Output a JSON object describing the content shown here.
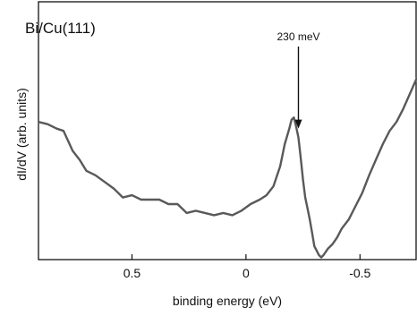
{
  "chart_data": {
    "type": "line",
    "panel_label": "Bi/Cu(111)",
    "xlabel": "binding energy (eV)",
    "ylabel": "dI/dV (arb. units)",
    "xlim": [
      0.91,
      -0.75
    ],
    "ylim": [
      0,
      100
    ],
    "y_ticks_labeled": false,
    "x_ticks": [
      0.5,
      0,
      -0.5
    ],
    "x_tick_labels": [
      "0.5",
      "0",
      "-0.5"
    ],
    "grid": false,
    "series": [
      {
        "color": "#595959",
        "x": [
          0.91,
          0.87,
          0.83,
          0.8,
          0.76,
          0.73,
          0.7,
          0.66,
          0.62,
          0.58,
          0.54,
          0.5,
          0.46,
          0.42,
          0.38,
          0.34,
          0.3,
          0.26,
          0.22,
          0.18,
          0.14,
          0.1,
          0.06,
          0.02,
          -0.02,
          -0.06,
          -0.09,
          -0.12,
          -0.15,
          -0.17,
          -0.19,
          -0.2,
          -0.21,
          -0.22,
          -0.23,
          -0.24,
          -0.25,
          -0.26,
          -0.27,
          -0.28,
          -0.29,
          -0.3,
          -0.31,
          -0.32,
          -0.33,
          -0.34,
          -0.36,
          -0.38,
          -0.4,
          -0.42,
          -0.45,
          -0.48,
          -0.51,
          -0.54,
          -0.57,
          -0.6,
          -0.63,
          -0.66,
          -0.69,
          -0.72,
          -0.75
        ],
        "values": [
          62,
          61,
          59,
          58,
          49,
          45,
          40,
          38,
          35,
          32,
          28,
          29,
          27,
          27,
          27,
          25,
          25,
          21,
          22,
          21,
          20,
          21,
          20,
          22,
          25,
          27,
          29,
          33,
          42,
          52,
          59,
          63,
          64,
          60,
          55,
          46,
          36,
          28,
          23,
          18,
          12,
          6,
          4,
          2,
          1,
          2,
          5,
          7,
          10,
          14,
          18,
          24,
          30,
          38,
          45,
          52,
          58,
          62,
          68,
          75,
          82
        ]
      }
    ],
    "annotation": {
      "text": "230 meV",
      "x": -0.23
    }
  }
}
